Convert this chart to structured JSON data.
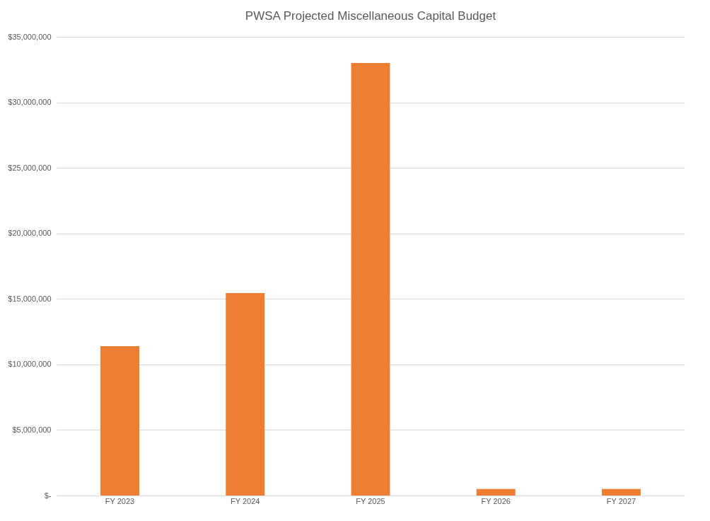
{
  "chart_data": {
    "type": "bar",
    "title": "PWSA Projected Miscellaneous Capital Budget",
    "categories": [
      "FY 2023",
      "FY 2024",
      "FY 2025",
      "FY 2026",
      "FY 2027"
    ],
    "values": [
      11400000,
      15450000,
      33000000,
      500000,
      500000
    ],
    "color": "#ed7d31",
    "ylim": [
      0,
      35000000
    ],
    "yticks": [
      {
        "value": 0,
        "label": "$-"
      },
      {
        "value": 5000000,
        "label": "$5,000,000"
      },
      {
        "value": 10000000,
        "label": "$10,000,000"
      },
      {
        "value": 15000000,
        "label": "$15,000,000"
      },
      {
        "value": 20000000,
        "label": "$20,000,000"
      },
      {
        "value": 25000000,
        "label": "$25,000,000"
      },
      {
        "value": 30000000,
        "label": "$30,000,000"
      },
      {
        "value": 35000000,
        "label": "$35,000,000"
      }
    ],
    "grid": true
  }
}
